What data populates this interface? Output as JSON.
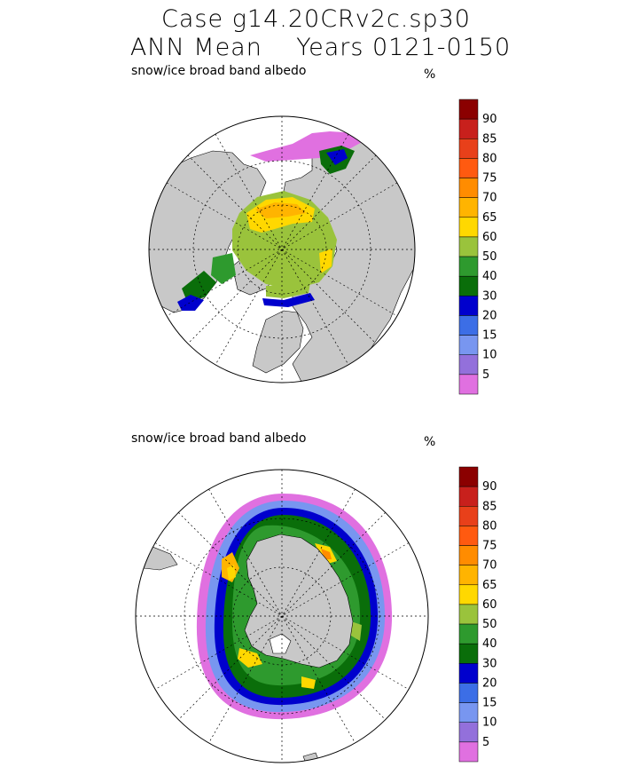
{
  "header": {
    "line1": "Case g14.20CRv2c.sp30",
    "line2": "ANN Mean    Years 0121-0150"
  },
  "panels": [
    {
      "label": "snow/ice broad band albedo",
      "unit": "%",
      "hemisphere": "north"
    },
    {
      "label": "snow/ice broad band albedo",
      "unit": "%",
      "hemisphere": "south"
    }
  ],
  "colorbar": {
    "levels": [
      "90",
      "85",
      "80",
      "75",
      "70",
      "65",
      "60",
      "50",
      "40",
      "30",
      "20",
      "15",
      "10",
      "5"
    ],
    "colors": [
      "#8b0000",
      "#c8201c",
      "#e8401a",
      "#ff5a10",
      "#ff8c00",
      "#ffb400",
      "#ffd800",
      "#9ac33c",
      "#2e9a2e",
      "#0a6e0a",
      "#0000cd",
      "#3c6ee6",
      "#7896f0",
      "#9370db",
      "#e070e0"
    ]
  },
  "map_colors": {
    "land": "#c8c8c8",
    "ocean": "#ffffff"
  }
}
